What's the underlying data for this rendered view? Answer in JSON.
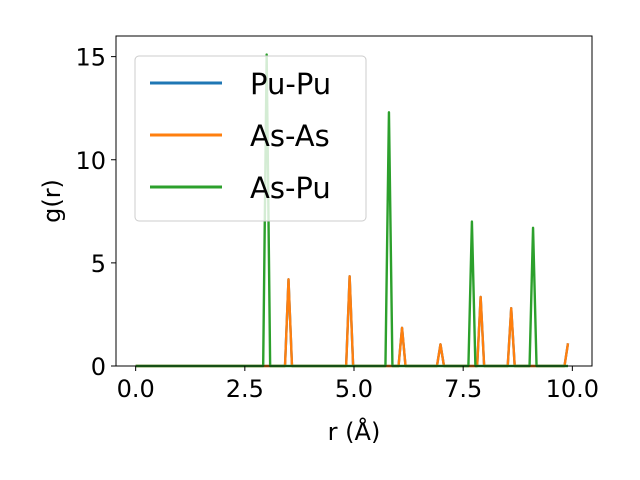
{
  "chart_data": {
    "type": "line",
    "title": "",
    "xlabel": "r (Å)",
    "ylabel": "g(r)",
    "xlim": [
      -0.45,
      10.45
    ],
    "ylim": [
      0,
      16
    ],
    "xticks": [
      0.0,
      2.5,
      5.0,
      7.5,
      10.0
    ],
    "xtick_labels": [
      "0.0",
      "2.5",
      "5.0",
      "7.5",
      "10.0"
    ],
    "yticks": [
      0,
      5,
      10,
      15
    ],
    "ytick_labels": [
      "0",
      "5",
      "10",
      "15"
    ],
    "grid": false,
    "legend_position": "upper-left",
    "series": [
      {
        "name": "Pu-Pu",
        "color": "#1f77b4",
        "x": [
          0.0,
          3.42,
          3.5,
          3.58,
          4.82,
          4.9,
          4.98,
          6.02,
          6.1,
          6.18,
          6.9,
          6.98,
          7.06,
          7.82,
          7.9,
          7.98,
          8.52,
          8.6,
          8.68,
          9.82,
          9.9
        ],
        "y": [
          0,
          0,
          4.2,
          0,
          0,
          4.35,
          0,
          0,
          1.85,
          0,
          0,
          1.05,
          0,
          0,
          3.35,
          0,
          0,
          2.8,
          0,
          0,
          1.1
        ]
      },
      {
        "name": "As-As",
        "color": "#ff7f0e",
        "x": [
          0.0,
          3.42,
          3.5,
          3.58,
          4.82,
          4.9,
          4.98,
          6.02,
          6.1,
          6.18,
          6.9,
          6.98,
          7.06,
          7.82,
          7.9,
          7.98,
          8.52,
          8.6,
          8.68,
          9.82,
          9.9
        ],
        "y": [
          0,
          0,
          4.2,
          0,
          0,
          4.35,
          0,
          0,
          1.85,
          0,
          0,
          1.05,
          0,
          0,
          3.35,
          0,
          0,
          2.8,
          0,
          0,
          1.1
        ]
      },
      {
        "name": "As-Pu",
        "color": "#2ca02c",
        "x": [
          0.0,
          2.92,
          3.0,
          3.08,
          5.72,
          5.8,
          5.88,
          7.62,
          7.7,
          7.78,
          9.02,
          9.1,
          9.18,
          9.9
        ],
        "y": [
          0,
          0,
          15.1,
          0,
          0,
          12.3,
          0,
          0,
          7.0,
          0,
          0,
          6.7,
          0,
          0
        ]
      }
    ]
  }
}
